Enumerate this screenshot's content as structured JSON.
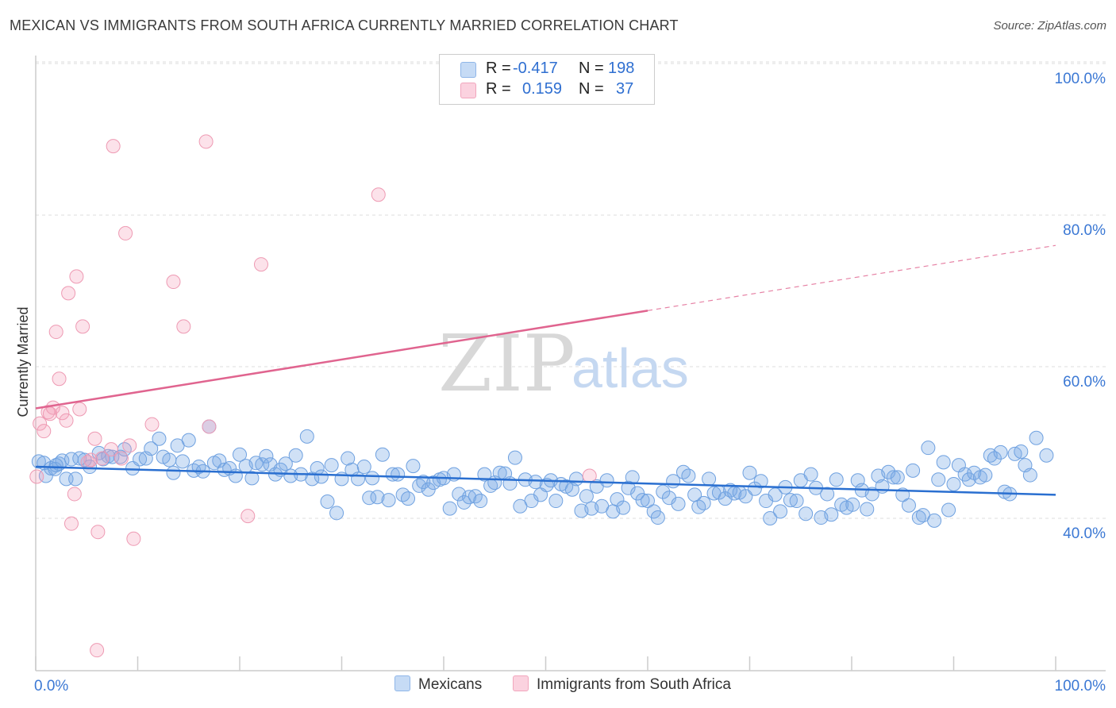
{
  "title": "MEXICAN VS IMMIGRANTS FROM SOUTH AFRICA CURRENTLY MARRIED CORRELATION CHART",
  "source": "Source: ZipAtlas.com",
  "watermark": {
    "zip": "ZIP",
    "atlas": "atlas"
  },
  "legend": {
    "rows": [
      {
        "r_label": "R =",
        "r_value": "-0.417",
        "n_label": "N =",
        "n_value": "198",
        "color": "#a9c8f0"
      },
      {
        "r_label": "R =",
        "r_value": "0.159",
        "n_label": "N =",
        "n_value": "37",
        "color": "#f6b8ca"
      }
    ]
  },
  "bottom_legend": [
    {
      "label": "Mexicans",
      "color": "#a9c8f0"
    },
    {
      "label": "Immigrants from South Africa",
      "color": "#f6b8ca"
    }
  ],
  "colors": {
    "blue_fill": "rgba(120,170,230,0.35)",
    "blue_stroke": "#6fa1e0",
    "blue_line": "#2a6fd0",
    "pink_fill": "rgba(245,160,185,0.30)",
    "pink_stroke": "#ee9ab3",
    "pink_line": "#e0648f",
    "tick_text": "#3b78d4",
    "grid": "#dddddd"
  },
  "chart_data": {
    "type": "scatter",
    "title": "MEXICAN VS IMMIGRANTS FROM SOUTH AFRICA CURRENTLY MARRIED CORRELATION CHART",
    "xlabel": "",
    "ylabel": "Currently Married",
    "xlim": [
      0,
      100
    ],
    "ylim": [
      20,
      104
    ],
    "x_tick_labels": [
      "0.0%",
      "100.0%"
    ],
    "y_ticks": [
      40,
      60,
      80,
      100
    ],
    "y_tick_labels": [
      "40.0%",
      "60.0%",
      "80.0%",
      "100.0%"
    ],
    "grid": true,
    "legend_position": "top-center",
    "series": [
      {
        "name": "Mexicans",
        "color": "#6fa1e0",
        "trend": {
          "x": [
            0,
            100
          ],
          "y": [
            46.8,
            43.1
          ],
          "dashed_from": null
        },
        "points": [
          [
            0.3,
            47.5
          ],
          [
            0.8,
            47.3
          ],
          [
            1.0,
            45.6
          ],
          [
            1.5,
            46.6
          ],
          [
            1.9,
            46.5
          ],
          [
            2.3,
            47.2
          ],
          [
            2.6,
            47.6
          ],
          [
            3.0,
            45.2
          ],
          [
            3.5,
            47.8
          ],
          [
            3.9,
            45.2
          ],
          [
            4.3,
            47.9
          ],
          [
            4.8,
            47.7
          ],
          [
            5.3,
            46.8
          ],
          [
            6.2,
            48.6
          ],
          [
            6.6,
            47.8
          ],
          [
            7.1,
            48.2
          ],
          [
            7.5,
            48.1
          ],
          [
            8.3,
            48.1
          ],
          [
            8.7,
            49.1
          ],
          [
            9.5,
            46.6
          ],
          [
            10.2,
            47.8
          ],
          [
            10.8,
            47.9
          ],
          [
            11.3,
            49.2
          ],
          [
            12.1,
            50.5
          ],
          [
            12.5,
            48.1
          ],
          [
            13.1,
            47.7
          ],
          [
            13.5,
            46.0
          ],
          [
            13.9,
            49.6
          ],
          [
            14.4,
            47.5
          ],
          [
            15.0,
            50.3
          ],
          [
            15.5,
            46.3
          ],
          [
            16.0,
            46.8
          ],
          [
            16.4,
            46.2
          ],
          [
            17.0,
            52.1
          ],
          [
            17.5,
            47.3
          ],
          [
            18.0,
            47.6
          ],
          [
            18.5,
            46.4
          ],
          [
            19.0,
            46.6
          ],
          [
            19.6,
            45.6
          ],
          [
            20.0,
            48.4
          ],
          [
            20.6,
            46.9
          ],
          [
            21.2,
            45.3
          ],
          [
            21.6,
            47.3
          ],
          [
            22.2,
            47.1
          ],
          [
            22.6,
            48.2
          ],
          [
            23.0,
            47.1
          ],
          [
            23.5,
            45.8
          ],
          [
            24.0,
            46.4
          ],
          [
            24.5,
            47.2
          ],
          [
            25.0,
            45.6
          ],
          [
            25.5,
            48.3
          ],
          [
            26.0,
            45.8
          ],
          [
            26.6,
            50.8
          ],
          [
            27.1,
            45.2
          ],
          [
            27.6,
            46.6
          ],
          [
            28.0,
            45.5
          ],
          [
            28.6,
            42.2
          ],
          [
            29.0,
            47.0
          ],
          [
            29.5,
            40.7
          ],
          [
            30.0,
            45.2
          ],
          [
            30.6,
            47.9
          ],
          [
            31.0,
            46.4
          ],
          [
            31.6,
            45.2
          ],
          [
            32.2,
            46.8
          ],
          [
            32.7,
            42.7
          ],
          [
            33.0,
            45.3
          ],
          [
            33.5,
            42.8
          ],
          [
            34.0,
            48.4
          ],
          [
            34.6,
            42.4
          ],
          [
            35.0,
            45.8
          ],
          [
            35.5,
            45.8
          ],
          [
            36.0,
            43.1
          ],
          [
            36.5,
            42.6
          ],
          [
            37.0,
            46.9
          ],
          [
            37.6,
            44.3
          ],
          [
            38.0,
            44.8
          ],
          [
            38.5,
            43.8
          ],
          [
            39.0,
            44.7
          ],
          [
            39.6,
            45.1
          ],
          [
            40.0,
            45.3
          ],
          [
            40.6,
            41.3
          ],
          [
            41.0,
            45.8
          ],
          [
            41.5,
            43.2
          ],
          [
            42.0,
            42.1
          ],
          [
            42.5,
            42.8
          ],
          [
            43.1,
            42.9
          ],
          [
            43.6,
            42.3
          ],
          [
            44.0,
            45.8
          ],
          [
            44.6,
            44.3
          ],
          [
            45.0,
            44.7
          ],
          [
            45.5,
            46.0
          ],
          [
            46.0,
            45.9
          ],
          [
            46.5,
            44.6
          ],
          [
            47.0,
            48.0
          ],
          [
            47.5,
            41.6
          ],
          [
            48.0,
            45.1
          ],
          [
            48.6,
            42.3
          ],
          [
            49.0,
            44.8
          ],
          [
            49.5,
            43.1
          ],
          [
            50.1,
            44.4
          ],
          [
            50.5,
            45.0
          ],
          [
            51.0,
            42.3
          ],
          [
            51.5,
            44.5
          ],
          [
            52.0,
            44.2
          ],
          [
            52.6,
            43.8
          ],
          [
            53.0,
            45.2
          ],
          [
            53.5,
            41.0
          ],
          [
            54.0,
            42.9
          ],
          [
            54.5,
            41.3
          ],
          [
            55.0,
            44.2
          ],
          [
            55.5,
            41.6
          ],
          [
            56.0,
            45.0
          ],
          [
            56.6,
            40.9
          ],
          [
            57.0,
            42.5
          ],
          [
            57.6,
            41.4
          ],
          [
            58.1,
            44.0
          ],
          [
            58.5,
            45.4
          ],
          [
            59.0,
            43.3
          ],
          [
            59.5,
            42.4
          ],
          [
            60.0,
            42.3
          ],
          [
            60.6,
            40.9
          ],
          [
            61.0,
            40.1
          ],
          [
            61.5,
            43.5
          ],
          [
            62.1,
            42.7
          ],
          [
            62.5,
            44.9
          ],
          [
            63.0,
            41.9
          ],
          [
            63.5,
            46.1
          ],
          [
            64.0,
            45.6
          ],
          [
            64.6,
            43.1
          ],
          [
            65.0,
            41.5
          ],
          [
            65.5,
            42.0
          ],
          [
            66.0,
            45.2
          ],
          [
            66.5,
            43.3
          ],
          [
            67.0,
            43.4
          ],
          [
            67.6,
            42.6
          ],
          [
            68.1,
            43.7
          ],
          [
            68.5,
            43.3
          ],
          [
            69.0,
            43.4
          ],
          [
            69.6,
            42.9
          ],
          [
            70.0,
            46.0
          ],
          [
            70.5,
            43.9
          ],
          [
            71.1,
            44.9
          ],
          [
            71.6,
            42.3
          ],
          [
            72.0,
            40.0
          ],
          [
            72.5,
            43.1
          ],
          [
            73.0,
            40.9
          ],
          [
            73.5,
            44.1
          ],
          [
            74.0,
            42.4
          ],
          [
            74.6,
            42.3
          ],
          [
            75.0,
            45.0
          ],
          [
            75.5,
            40.6
          ],
          [
            76.0,
            45.8
          ],
          [
            76.5,
            44.0
          ],
          [
            77.0,
            40.1
          ],
          [
            77.6,
            43.2
          ],
          [
            78.0,
            40.5
          ],
          [
            78.5,
            45.1
          ],
          [
            79.0,
            41.8
          ],
          [
            79.5,
            41.4
          ],
          [
            80.1,
            41.8
          ],
          [
            80.6,
            45.0
          ],
          [
            81.0,
            43.7
          ],
          [
            81.5,
            41.2
          ],
          [
            82.0,
            43.2
          ],
          [
            82.6,
            45.6
          ],
          [
            83.0,
            44.2
          ],
          [
            83.6,
            46.1
          ],
          [
            84.1,
            45.4
          ],
          [
            84.5,
            45.4
          ],
          [
            85.0,
            43.1
          ],
          [
            85.6,
            41.7
          ],
          [
            86.0,
            46.3
          ],
          [
            86.6,
            40.1
          ],
          [
            87.0,
            40.4
          ],
          [
            87.5,
            49.3
          ],
          [
            88.1,
            39.7
          ],
          [
            88.5,
            45.1
          ],
          [
            89.0,
            47.4
          ],
          [
            89.5,
            41.1
          ],
          [
            90.0,
            44.5
          ],
          [
            90.5,
            47.0
          ],
          [
            91.1,
            45.8
          ],
          [
            91.5,
            45.1
          ],
          [
            92.0,
            46.0
          ],
          [
            92.6,
            45.4
          ],
          [
            93.1,
            45.7
          ],
          [
            93.6,
            48.3
          ],
          [
            94.0,
            47.9
          ],
          [
            94.6,
            48.7
          ],
          [
            95.0,
            43.5
          ],
          [
            95.5,
            43.2
          ],
          [
            96.0,
            48.5
          ],
          [
            96.6,
            48.8
          ],
          [
            97.0,
            47.0
          ],
          [
            97.5,
            45.7
          ],
          [
            98.1,
            50.6
          ],
          [
            99.1,
            48.3
          ],
          [
            2.0,
            47.0
          ]
        ]
      },
      {
        "name": "Immigrants from South Africa",
        "color": "#ee9ab3",
        "trend": {
          "x": [
            0,
            60
          ],
          "y": [
            54.5,
            67.4
          ],
          "extend_dashed_to": [
            100,
            76.0
          ]
        },
        "points": [
          [
            0.1,
            45.5
          ],
          [
            0.4,
            52.5
          ],
          [
            0.8,
            51.5
          ],
          [
            1.2,
            54.0
          ],
          [
            1.4,
            53.8
          ],
          [
            1.7,
            54.6
          ],
          [
            2.0,
            64.6
          ],
          [
            2.3,
            58.4
          ],
          [
            2.6,
            53.9
          ],
          [
            3.0,
            52.9
          ],
          [
            3.2,
            69.7
          ],
          [
            3.5,
            39.3
          ],
          [
            3.8,
            43.2
          ],
          [
            4.0,
            71.9
          ],
          [
            4.3,
            54.4
          ],
          [
            4.6,
            65.3
          ],
          [
            5.1,
            47.4
          ],
          [
            5.4,
            47.7
          ],
          [
            5.8,
            50.5
          ],
          [
            6.1,
            38.2
          ],
          [
            6.0,
            22.6
          ],
          [
            7.4,
            49.1
          ],
          [
            7.6,
            89.1
          ],
          [
            8.4,
            47.9
          ],
          [
            8.8,
            77.6
          ],
          [
            9.2,
            49.6
          ],
          [
            9.6,
            37.3
          ],
          [
            11.4,
            52.4
          ],
          [
            13.5,
            71.2
          ],
          [
            14.5,
            65.3
          ],
          [
            16.7,
            89.7
          ],
          [
            17.0,
            52.1
          ],
          [
            20.8,
            40.3
          ],
          [
            22.1,
            73.5
          ],
          [
            33.6,
            82.7
          ],
          [
            54.3,
            45.6
          ],
          [
            6.5,
            47.9
          ]
        ]
      }
    ]
  }
}
